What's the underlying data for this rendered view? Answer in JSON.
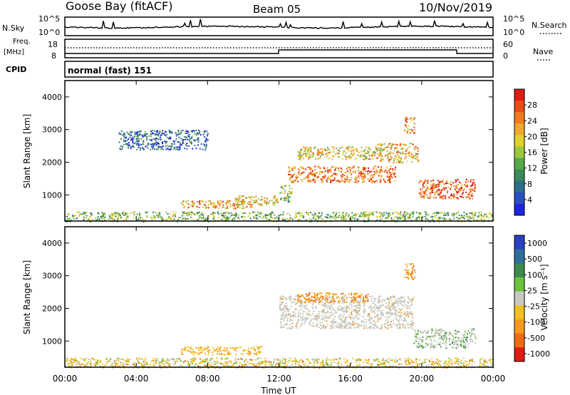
{
  "header": {
    "station": "Goose Bay (fitACF)",
    "beam": "Beam 05",
    "date": "10/Nov/2019"
  },
  "top_panels": {
    "nsky_label": "N.Sky",
    "nsky_ticks": [
      "10^5",
      "10^0"
    ],
    "nsearch_label": "N.Search",
    "nsearch_ticks": [
      "10^5",
      "10^0"
    ],
    "freq_label": "Freq.",
    "freq_unit": "[MHz]",
    "freq_ticks": [
      "18",
      "8"
    ],
    "nave_label": "Nave",
    "nave_ticks": [
      "60",
      "0"
    ],
    "cpid_label": "CPID",
    "cpid_value": "normal (fast) 151"
  },
  "chart_data": [
    {
      "type": "heatmap",
      "panel": "power",
      "ylabel": "Slant Range [km]",
      "yticks": [
        "1000",
        "2000",
        "3000",
        "4000"
      ],
      "ylim": [
        200,
        4500
      ],
      "xlim": [
        0,
        24
      ],
      "colorbar": {
        "label": "Power [dB]",
        "ticks": [
          "4",
          "8",
          "12",
          "16",
          "20",
          "24",
          "28"
        ],
        "colors": [
          "#1e22e0",
          "#2a4fbf",
          "#2e6e8c",
          "#3b8a5a",
          "#57a84a",
          "#9cc73c",
          "#e0d22a",
          "#f0a82a",
          "#f27a1e",
          "#ee4a18",
          "#e01a14"
        ]
      },
      "regions": [
        {
          "t0": 0.0,
          "t1": 24.0,
          "r0": 200,
          "r1": 500,
          "level": 0.45
        },
        {
          "t0": 6.5,
          "t1": 10.5,
          "r0": 600,
          "r1": 850,
          "level": 0.7
        },
        {
          "t0": 9.5,
          "t1": 12.0,
          "r0": 700,
          "r1": 1000,
          "level": 0.6
        },
        {
          "t0": 12.0,
          "t1": 12.7,
          "r0": 800,
          "r1": 1300,
          "level": 0.45
        },
        {
          "t0": 12.5,
          "t1": 18.5,
          "r0": 1400,
          "r1": 1900,
          "level": 0.78
        },
        {
          "t0": 13.0,
          "t1": 17.5,
          "r0": 2100,
          "r1": 2500,
          "level": 0.6
        },
        {
          "t0": 17.5,
          "t1": 19.8,
          "r0": 2000,
          "r1": 2600,
          "level": 0.65
        },
        {
          "t0": 19.0,
          "t1": 19.6,
          "r0": 2900,
          "r1": 3400,
          "level": 0.75
        },
        {
          "t0": 19.8,
          "t1": 23.0,
          "r0": 900,
          "r1": 1500,
          "level": 0.85
        },
        {
          "t0": 3.0,
          "t1": 8.0,
          "r0": 2400,
          "r1": 3000,
          "level": 0.2
        }
      ]
    },
    {
      "type": "heatmap",
      "panel": "velocity",
      "ylabel": "Slant Range [km]",
      "yticks": [
        "1000",
        "2000",
        "3000",
        "4000"
      ],
      "ylim": [
        200,
        4500
      ],
      "xlim": [
        0,
        24
      ],
      "xticks": [
        "00:00",
        "04:00",
        "08:00",
        "12:00",
        "16:00",
        "20:00",
        "00:00"
      ],
      "xlabel": "Time UT",
      "colorbar": {
        "label": "Velocity [m s⁻¹]",
        "ticks": [
          "1000",
          "500",
          "100",
          "25",
          "-25",
          "-100",
          "-500",
          "-1000"
        ],
        "colors": [
          "#2a3fc0",
          "#2f6e9a",
          "#3d8a4f",
          "#6cc23c",
          "#c8c8c0",
          "#f0c020",
          "#f59a1a",
          "#f06a16",
          "#e01a14"
        ]
      },
      "regions": [
        {
          "t0": 0.0,
          "t1": 24.0,
          "r0": 200,
          "r1": 500,
          "class": "mixed-yellow"
        },
        {
          "t0": 6.5,
          "t1": 11.0,
          "r0": 600,
          "r1": 850,
          "class": "orange-yellow"
        },
        {
          "t0": 12.0,
          "t1": 19.5,
          "r0": 1400,
          "r1": 2400,
          "class": "gray"
        },
        {
          "t0": 13.0,
          "t1": 17.0,
          "r0": 2200,
          "r1": 2500,
          "class": "orange"
        },
        {
          "t0": 19.5,
          "t1": 23.0,
          "r0": 800,
          "r1": 1400,
          "class": "gray-green"
        },
        {
          "t0": 19.0,
          "t1": 19.6,
          "r0": 2900,
          "r1": 3400,
          "class": "orange"
        }
      ]
    }
  ]
}
